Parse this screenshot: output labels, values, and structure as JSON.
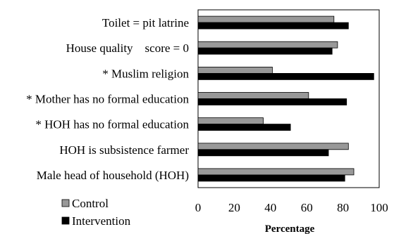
{
  "chart_data": {
    "type": "bar",
    "orientation": "horizontal",
    "categories": [
      "Toilet = pit latrine",
      "House quality    score = 0",
      "* Muslim religion",
      "* Mother has no formal education",
      "* HOH has no formal education",
      "HOH is subsistence farmer",
      "Male head of household (HOH)"
    ],
    "series": [
      {
        "name": "Control",
        "color": "#999999",
        "values": [
          75,
          77,
          41,
          61,
          36,
          83,
          86
        ]
      },
      {
        "name": "Intervention",
        "color": "#000000",
        "values": [
          83,
          74,
          97,
          82,
          51,
          72,
          81
        ]
      }
    ],
    "xlabel": "Percentage",
    "xlim": [
      0,
      100
    ],
    "xticks": [
      "0",
      "20",
      "40",
      "60",
      "80",
      "100"
    ],
    "legend_position": "bottom-left",
    "grid": false
  }
}
